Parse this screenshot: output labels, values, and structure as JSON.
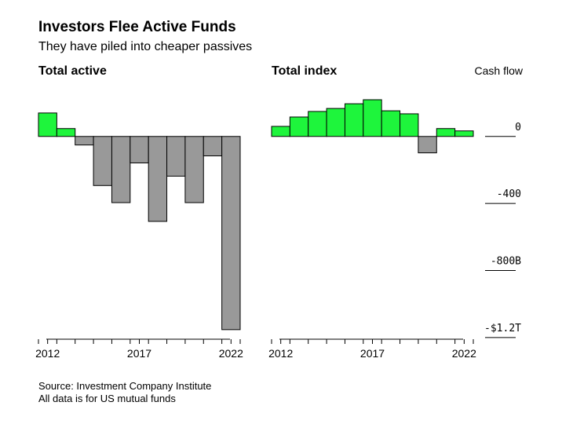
{
  "title": "Investors Flee Active Funds",
  "subtitle": "They have piled into cheaper passives",
  "notes": [
    "Source: Investment Company Institute",
    "All data is for US mutual funds"
  ],
  "chart_data": [
    {
      "type": "bar",
      "title": "Total active",
      "x": [
        2012,
        2013,
        2014,
        2015,
        2016,
        2017,
        2018,
        2019,
        2020,
        2021,
        2022
      ],
      "values": [
        140,
        47,
        -51,
        -293,
        -395,
        -158,
        -507,
        -237,
        -395,
        -116,
        -1153
      ],
      "positive_color": "#1ef53c",
      "negative_color": "#999999",
      "xticks": [
        2012,
        2017,
        2022
      ],
      "ylim": [
        -1210,
        280
      ]
    },
    {
      "type": "bar",
      "title": "Total index",
      "x": [
        2012,
        2013,
        2014,
        2015,
        2016,
        2017,
        2018,
        2019,
        2020,
        2021,
        2022
      ],
      "values": [
        60,
        116,
        149,
        167,
        195,
        219,
        153,
        135,
        -98,
        47,
        33
      ],
      "positive_color": "#1ef53c",
      "negative_color": "#999999",
      "xticks": [
        2012,
        2017,
        2022
      ],
      "ylim": [
        -1210,
        280
      ],
      "y_label": "Cash flow",
      "yticks": [
        0,
        -400,
        {
          "value": -800,
          "label": "-800B"
        },
        {
          "value": -1200,
          "label": "-$1.2T"
        }
      ]
    }
  ]
}
